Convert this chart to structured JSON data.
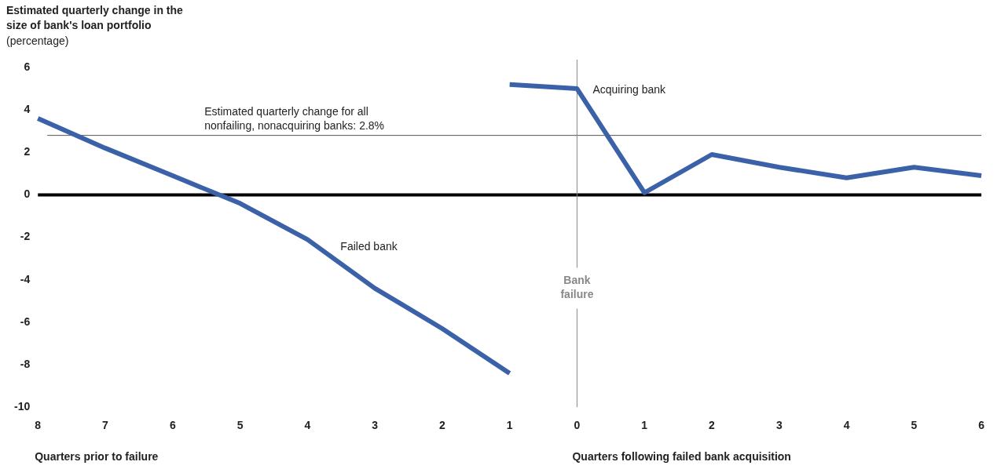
{
  "chart_data": {
    "type": "line",
    "title": "Estimated quarterly change in the size of bank's loan portfolio",
    "ylabel": "(percentage)",
    "categories": [
      "8",
      "7",
      "6",
      "5",
      "4",
      "3",
      "2",
      "1",
      "0",
      "1",
      "2",
      "3",
      "4",
      "5",
      "6"
    ],
    "series": [
      {
        "name": "Failed bank",
        "color": "#3b62a8",
        "values": [
          3.6,
          2.2,
          0.9,
          -0.4,
          -2.1,
          -4.4,
          -6.3,
          -8.4,
          null,
          null,
          null,
          null,
          null,
          null,
          null
        ]
      },
      {
        "name": "Acquiring bank",
        "color": "#3b62a8",
        "values": [
          null,
          null,
          null,
          null,
          null,
          null,
          null,
          5.2,
          5.0,
          0.1,
          1.9,
          1.3,
          0.8,
          1.3,
          0.9
        ]
      }
    ],
    "ylim": [
      -10,
      6
    ],
    "yticks": [
      -10,
      -8,
      -6,
      -4,
      -2,
      0,
      2,
      4,
      6
    ],
    "ref_lines": [
      {
        "axis": "y",
        "value": 0,
        "color": "#000000"
      },
      {
        "axis": "y",
        "value": 2.8,
        "label": "Estimated quarterly change for all nonfailing, nonacquiring banks: 2.8%",
        "color": "#555555"
      },
      {
        "axis": "x",
        "value": "0",
        "label": "Bank failure",
        "color": "#888888"
      }
    ],
    "annotations": [
      "Quarters prior to failure",
      "Quarters following failed bank acquisition"
    ],
    "grid": false,
    "legend": false,
    "marker": "none",
    "line_style": "solid"
  }
}
